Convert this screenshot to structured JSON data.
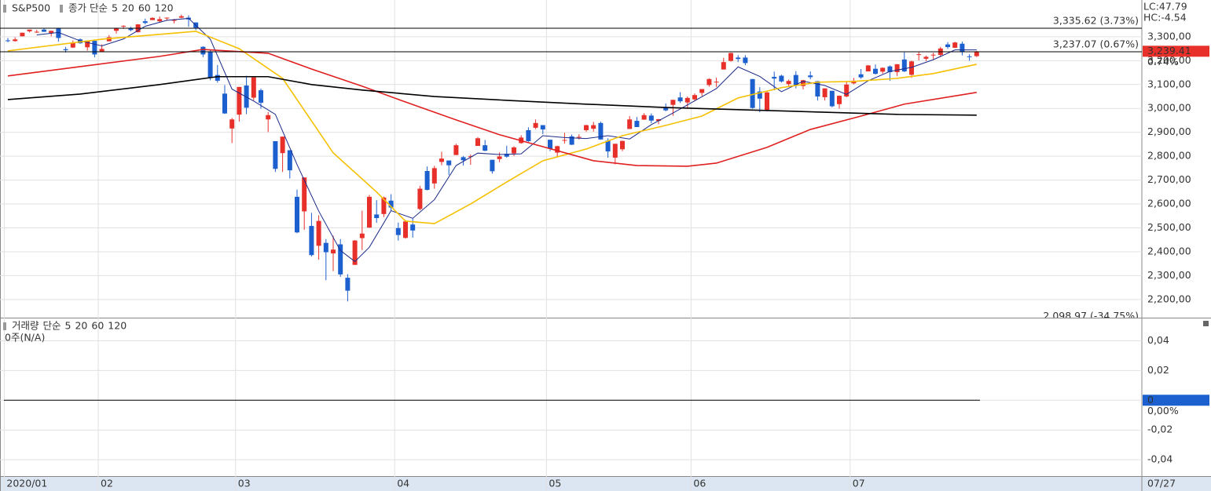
{
  "chart_data": [
    {
      "type": "candlestick",
      "title": "S&P500",
      "categories": [
        "2020/01",
        null,
        null,
        null,
        null,
        null,
        null,
        null,
        null,
        null,
        null,
        null,
        null,
        "02",
        null,
        null,
        null,
        null,
        null,
        null,
        null,
        null,
        null,
        null,
        null,
        null,
        null,
        null,
        null,
        null,
        null,
        null,
        "03",
        null,
        null,
        null,
        null,
        null,
        null,
        null,
        null,
        null,
        null,
        null,
        null,
        null,
        null,
        null,
        null,
        null,
        null,
        null,
        null,
        null,
        "04",
        null,
        null,
        null,
        null,
        null,
        null,
        null,
        null,
        null,
        null,
        null,
        null,
        null,
        null,
        null,
        null,
        null,
        null,
        null,
        null,
        "05",
        null,
        null,
        null,
        null,
        null,
        null,
        null,
        null,
        null,
        null,
        null,
        null,
        null,
        null,
        null,
        null,
        null,
        null,
        null,
        "06",
        null,
        null,
        null,
        null,
        null,
        null,
        null,
        null,
        null,
        null,
        null,
        null,
        null,
        null,
        null,
        null,
        null,
        null,
        null,
        null,
        null,
        "07",
        null,
        null,
        null,
        null,
        null,
        null,
        null,
        null,
        null,
        null,
        null,
        null,
        null,
        null,
        null,
        null,
        null
      ],
      "open": [
        3285,
        3282,
        3302,
        3323,
        3321,
        3330,
        3316,
        3334,
        3248,
        3255,
        3289,
        3256,
        3283,
        3236,
        3281,
        3325,
        3344,
        3335,
        3319,
        3365,
        3370,
        3365,
        3378,
        3370,
        3380,
        3380,
        3360,
        3258,
        3238,
        3140,
        3062,
        2916,
        2974,
        3096,
        3045,
        3076,
        2954,
        2863,
        2813,
        2825,
        2630,
        2569,
        2508,
        2425,
        2437,
        2393,
        2431,
        2291,
        2345,
        2457,
        2501,
        2556,
        2558,
        2614,
        2499,
        2458,
        2514,
        2579,
        2738,
        2686,
        2776,
        2782,
        2805,
        2796,
        2799,
        2843,
        2846,
        2785,
        2788,
        2810,
        2812,
        2855,
        2909,
        2919,
        2930,
        2869,
        2815,
        2868,
        2883,
        2879,
        2909,
        2915,
        2939,
        2865,
        2794,
        2829,
        2914,
        2948,
        2953,
        2970,
        2948,
        3004,
        3015,
        3046,
        3025,
        3038,
        3065,
        3098,
        3112,
        3163,
        3199,
        3213,
        3213,
        3123,
        3071,
        2994,
        3132,
        3137,
        3102,
        3140,
        3094,
        3138,
        3114,
        3047,
        3074,
        3018,
        3050,
        3105,
        3143,
        3155,
        3166,
        3154,
        3176,
        3152,
        3205,
        3141,
        3226,
        3208,
        3225,
        3224,
        3268,
        3254,
        3271,
        3218,
        3219
      ],
      "high": [
        3295,
        3298,
        3317,
        3330,
        3329,
        3337,
        3326,
        3338,
        3258,
        3285,
        3293,
        3285,
        3283,
        3268,
        3307,
        3338,
        3348,
        3342,
        3353,
        3376,
        3382,
        3385,
        3381,
        3375,
        3393,
        3390,
        3360,
        3260,
        3247,
        3182,
        3098,
        2960,
        3090,
        3137,
        3130,
        3083,
        2985,
        2863,
        2882,
        2825,
        2660,
        2711,
        2563,
        2553,
        2453,
        2467,
        2453,
        2306,
        2449,
        2572,
        2638,
        2616,
        2631,
        2641,
        2522,
        2533,
        2538,
        2676,
        2757,
        2760,
        2819,
        2782,
        2852,
        2801,
        2807,
        2880,
        2868,
        2785,
        2816,
        2844,
        2842,
        2888,
        2921,
        2954,
        2930,
        2869,
        2844,
        2898,
        2891,
        2892,
        2932,
        2944,
        2945,
        2875,
        2852,
        2865,
        2968,
        2964,
        2980,
        2979,
        2956,
        3021,
        3036,
        3068,
        3050,
        3063,
        3081,
        3126,
        3129,
        3212,
        3233,
        3223,
        3223,
        3123,
        3089,
        3074,
        3154,
        3141,
        3121,
        3156,
        3120,
        3155,
        3115,
        3084,
        3074,
        3054,
        3112,
        3128,
        3165,
        3182,
        3184,
        3172,
        3180,
        3186,
        3235,
        3200,
        3238,
        3221,
        3233,
        3258,
        3278,
        3279,
        3280,
        3227,
        3241
      ],
      "low": [
        3277,
        3280,
        3302,
        3318,
        3316,
        3320,
        3302,
        3280,
        3234,
        3253,
        3271,
        3242,
        3214,
        3236,
        3281,
        3313,
        3333,
        3323,
        3318,
        3352,
        3370,
        3361,
        3367,
        3356,
        3378,
        3342,
        3328,
        3215,
        3118,
        3108,
        2977,
        2855,
        2945,
        2976,
        3034,
        2999,
        2901,
        2734,
        2734,
        2707,
        2478,
        2492,
        2380,
        2367,
        2281,
        2319,
        2295,
        2192,
        2345,
        2407,
        2500,
        2521,
        2545,
        2572,
        2447,
        2455,
        2459,
        2574,
        2657,
        2664,
        2762,
        2721,
        2805,
        2761,
        2764,
        2843,
        2821,
        2727,
        2775,
        2794,
        2801,
        2852,
        2860,
        2913,
        2892,
        2821,
        2798,
        2853,
        2847,
        2870,
        2902,
        2903,
        2869,
        2794,
        2766,
        2821,
        2914,
        2922,
        2953,
        2938,
        2934,
        2988,
        2969,
        3023,
        2998,
        3032,
        3052,
        3091,
        3090,
        3163,
        3196,
        3194,
        3181,
        2999,
        2984,
        2988,
        3076,
        3108,
        3094,
        3084,
        3080,
        3122,
        3033,
        3033,
        3005,
        2999,
        3047,
        3101,
        3124,
        3155,
        3142,
        3145,
        3116,
        3136,
        3152,
        3128,
        3201,
        3198,
        3206,
        3215,
        3249,
        3253,
        3222,
        3200,
        3215
      ],
      "close": [
        3283,
        3289,
        3317,
        3330,
        3321,
        3321,
        3325,
        3295,
        3244,
        3276,
        3273,
        3284,
        3226,
        3249,
        3298,
        3334,
        3346,
        3328,
        3352,
        3358,
        3379,
        3374,
        3380,
        3370,
        3386,
        3373,
        3338,
        3226,
        3128,
        3116,
        2979,
        2954,
        3090,
        3003,
        3130,
        3024,
        2972,
        2747,
        2882,
        2741,
        2481,
        2711,
        2386,
        2529,
        2398,
        2409,
        2305,
        2237,
        2447,
        2476,
        2630,
        2541,
        2627,
        2585,
        2470,
        2527,
        2489,
        2664,
        2659,
        2750,
        2790,
        2762,
        2846,
        2783,
        2800,
        2875,
        2823,
        2737,
        2799,
        2798,
        2837,
        2878,
        2863,
        2939,
        2912,
        2831,
        2842,
        2868,
        2848,
        2881,
        2930,
        2930,
        2870,
        2820,
        2852,
        2864,
        2954,
        2922,
        2972,
        2949,
        2955,
        2992,
        3036,
        3030,
        3044,
        3056,
        3081,
        3123,
        3112,
        3194,
        3232,
        3207,
        3190,
        3002,
        3041,
        3067,
        3125,
        3113,
        3115,
        3098,
        3118,
        3131,
        3050,
        3084,
        3009,
        3053,
        3100,
        3116,
        3130,
        3180,
        3145,
        3170,
        3152,
        3185,
        3155,
        3197,
        3227,
        3216,
        3225,
        3251,
        3257,
        3276,
        3236,
        3215,
        3239
      ],
      "up_color": "#e8302a",
      "down_color": "#1c5fcf",
      "ylim": [
        2124,
        3454
      ],
      "yticks": [
        {
          "value": 2200,
          "label": "2,200,00"
        },
        {
          "value": 2300,
          "label": "2,300,00"
        },
        {
          "value": 2400,
          "label": "2,400,00"
        },
        {
          "value": 2500,
          "label": "2,500,00"
        },
        {
          "value": 2600,
          "label": "2,600,00"
        },
        {
          "value": 2700,
          "label": "2,700,00"
        },
        {
          "value": 2800,
          "label": "2,800,00"
        },
        {
          "value": 2900,
          "label": "2,900,00"
        },
        {
          "value": 3000,
          "label": "3,000,00"
        },
        {
          "value": 3100,
          "label": "3,100,00"
        },
        {
          "value": 3200,
          "label": "3,200,00"
        },
        {
          "value": 3300,
          "label": "3,300,00"
        }
      ],
      "grid": true,
      "moving_averages": {
        "label": "종가 단순",
        "series": [
          {
            "name": "5",
            "color": "#1a2a8a",
            "x": [
              4,
              7,
              10,
              13,
              16,
              19,
              22,
              25,
              28,
              31,
              34,
              37,
              40,
              43,
              46,
              48,
              50,
              53,
              56,
              59,
              62,
              65,
              68,
              71,
              74,
              77,
              80,
              83,
              86,
              89,
              92,
              95,
              98,
              101,
              104,
              107,
              110,
              113,
              116,
              119,
              122,
              125,
              128,
              131,
              134
            ],
            "values": [
              3308,
              3318,
              3283,
              3262,
              3291,
              3344,
              3369,
              3377,
              3290,
              3081,
              3031,
              2975,
              2765,
              2570,
              2405,
              2359,
              2419,
              2572,
              2540,
              2618,
              2761,
              2813,
              2807,
              2810,
              2886,
              2878,
              2874,
              2886,
              2872,
              2932,
              2981,
              3032,
              3083,
              3174,
              3134,
              3070,
              3114,
              3096,
              3059,
              3116,
              3155,
              3172,
              3204,
              3245,
              3245
            ]
          },
          {
            "name": "20",
            "color": "#f5c000",
            "x": [
              0,
              13,
              26,
              32,
              38,
              45,
              51,
              55,
              59,
              64,
              69,
              74,
              80,
              85,
              91,
              96,
              101,
              107,
              112,
              117,
              123,
              128,
              134
            ],
            "values": [
              3241,
              3290,
              3323,
              3250,
              3126,
              2814,
              2650,
              2528,
              2518,
              2600,
              2692,
              2781,
              2830,
              2886,
              2929,
              2968,
              3044,
              3087,
              3110,
              3113,
              3126,
              3146,
              3185
            ]
          },
          {
            "name": "60",
            "color": "#e02020",
            "x": [
              0,
              10,
              21,
              27,
              36,
              42,
              49,
              55,
              62,
              68,
              74,
              81,
              87,
              94,
              98,
              105,
              111,
              118,
              124,
              134
            ],
            "values": [
              3136,
              3175,
              3218,
              3247,
              3231,
              3165,
              3093,
              3027,
              2952,
              2890,
              2840,
              2781,
              2761,
              2758,
              2771,
              2837,
              2912,
              2968,
              3018,
              3067
            ]
          },
          {
            "name": "120",
            "color": "#000000",
            "x": [
              0,
              10,
              21,
              29,
              36,
              42,
              49,
              59,
              69,
              80,
              91,
              101,
              112,
              123,
              134
            ],
            "values": [
              3037,
              3060,
              3100,
              3133,
              3133,
              3100,
              3077,
              3050,
              3034,
              3018,
              3004,
              2995,
              2985,
              2975,
              2972
            ]
          }
        ]
      },
      "reference_lines": [
        {
          "value": 3335.62,
          "label": "3,335.62 (3.73%)"
        },
        {
          "value": 3237.07,
          "label": "3,237.07 (0.67%)"
        },
        {
          "value": 2098.97,
          "label": "2,098.97 (-34.75%)"
        }
      ],
      "last_price": {
        "value": 3239.41,
        "label": "3,239.41",
        "change": "0.74%"
      },
      "lc": "LC:47.79",
      "hc": "HC:-4.54",
      "cursor_date": "07/27"
    },
    {
      "type": "volume",
      "title": "거래량",
      "title_color": "#2b9aa6",
      "note": "0주(N/A)",
      "moving_averages": {
        "label": "단순",
        "series": [
          {
            "name": "5",
            "color": "#1a2a8a"
          },
          {
            "name": "20",
            "color": "#e02020"
          },
          {
            "name": "60",
            "color": "#1e9a3a"
          },
          {
            "name": "120",
            "color": "#1a2a8a"
          }
        ]
      },
      "ylim": [
        -0.051,
        0.055
      ],
      "yticks": [
        {
          "value": -0.04,
          "label": "-0,04"
        },
        {
          "value": -0.02,
          "label": "-0,02"
        },
        0,
        {
          "value": 0.02,
          "label": "0,02"
        },
        {
          "value": 0.04,
          "label": "0,04"
        }
      ],
      "grid": true,
      "last_value": {
        "value": 0,
        "label": "0",
        "change": "0,00%"
      }
    }
  ]
}
